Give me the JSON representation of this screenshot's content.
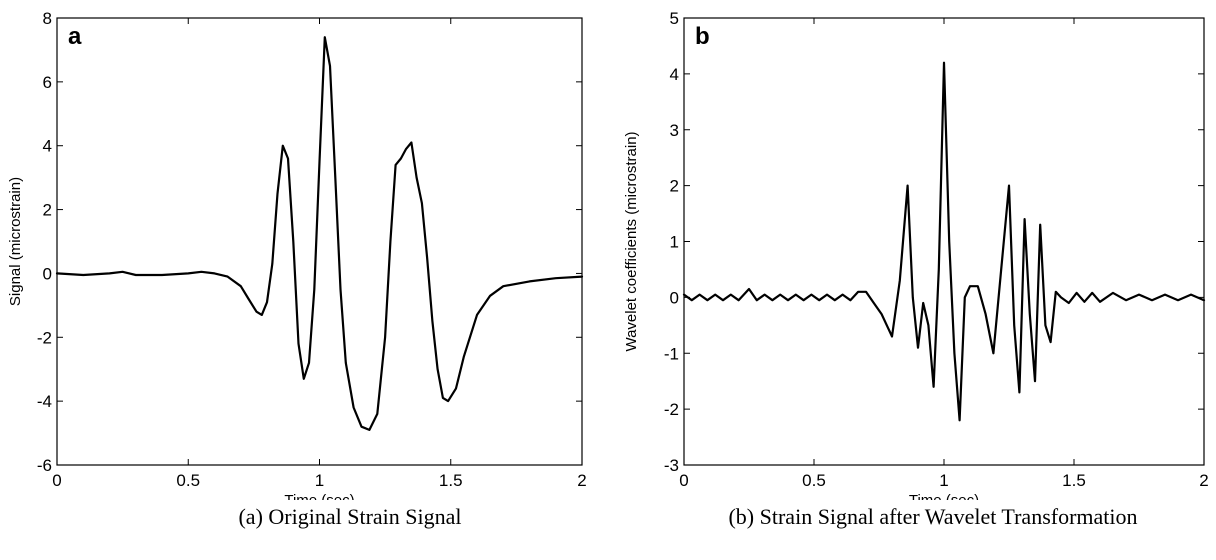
{
  "chart_data": [
    {
      "type": "line",
      "panel_label": "a",
      "xlabel": "Time (sec)",
      "ylabel": "Signal (microstrain)",
      "xlim": [
        0,
        2
      ],
      "ylim": [
        -6,
        8
      ],
      "xticks": [
        0,
        0.5,
        1,
        1.5,
        2
      ],
      "yticks": [
        -6,
        -4,
        -2,
        0,
        2,
        4,
        6,
        8
      ],
      "xtick_labels": [
        "0",
        "0.5",
        "1",
        "1.5",
        "2"
      ],
      "ytick_labels": [
        "-6",
        "-4",
        "-2",
        "0",
        "2",
        "4",
        "6",
        "8"
      ],
      "grid": false,
      "series": [
        {
          "line_color": "#000000",
          "x": [
            0,
            0.1,
            0.2,
            0.25,
            0.3,
            0.4,
            0.5,
            0.55,
            0.6,
            0.65,
            0.7,
            0.73,
            0.76,
            0.78,
            0.8,
            0.82,
            0.84,
            0.86,
            0.88,
            0.9,
            0.92,
            0.94,
            0.96,
            0.98,
            1.0,
            1.02,
            1.04,
            1.06,
            1.08,
            1.1,
            1.13,
            1.16,
            1.19,
            1.22,
            1.25,
            1.27,
            1.29,
            1.31,
            1.33,
            1.35,
            1.37,
            1.39,
            1.41,
            1.43,
            1.45,
            1.47,
            1.49,
            1.52,
            1.55,
            1.6,
            1.65,
            1.7,
            1.8,
            1.9,
            2.0
          ],
          "y": [
            0,
            -0.05,
            0,
            0.05,
            -0.05,
            -0.05,
            0,
            0.05,
            0,
            -0.1,
            -0.4,
            -0.8,
            -1.2,
            -1.3,
            -0.9,
            0.3,
            2.5,
            4.0,
            3.6,
            1.0,
            -2.2,
            -3.3,
            -2.8,
            -0.5,
            3.5,
            7.4,
            6.5,
            3.0,
            -0.5,
            -2.8,
            -4.2,
            -4.8,
            -4.9,
            -4.4,
            -2.0,
            1.0,
            3.4,
            3.6,
            3.9,
            4.1,
            3.0,
            2.2,
            0.5,
            -1.5,
            -3.0,
            -3.9,
            -4.0,
            -3.6,
            -2.6,
            -1.3,
            -0.7,
            -0.4,
            -0.25,
            -0.15,
            -0.1
          ]
        }
      ]
    },
    {
      "type": "line",
      "panel_label": "b",
      "xlabel": "Time (sec)",
      "ylabel": "Wavelet coefficients (microstrain)",
      "xlim": [
        0,
        2
      ],
      "ylim": [
        -3,
        5
      ],
      "xticks": [
        0,
        0.5,
        1,
        1.5,
        2
      ],
      "yticks": [
        -3,
        -2,
        -1,
        0,
        1,
        2,
        3,
        4,
        5
      ],
      "xtick_labels": [
        "0",
        "0.5",
        "1",
        "1.5",
        "2"
      ],
      "ytick_labels": [
        "-3",
        "-2",
        "-1",
        "0",
        "1",
        "2",
        "3",
        "4",
        "5"
      ],
      "grid": false,
      "series": [
        {
          "line_color": "#000000",
          "x": [
            0,
            0.03,
            0.06,
            0.09,
            0.12,
            0.15,
            0.18,
            0.21,
            0.25,
            0.28,
            0.31,
            0.34,
            0.37,
            0.4,
            0.43,
            0.46,
            0.49,
            0.52,
            0.55,
            0.58,
            0.61,
            0.64,
            0.67,
            0.7,
            0.73,
            0.76,
            0.8,
            0.83,
            0.86,
            0.88,
            0.9,
            0.92,
            0.94,
            0.96,
            0.98,
            1.0,
            1.02,
            1.04,
            1.06,
            1.08,
            1.1,
            1.13,
            1.16,
            1.19,
            1.22,
            1.25,
            1.27,
            1.29,
            1.31,
            1.33,
            1.35,
            1.37,
            1.39,
            1.41,
            1.43,
            1.45,
            1.48,
            1.51,
            1.54,
            1.57,
            1.6,
            1.65,
            1.7,
            1.75,
            1.8,
            1.85,
            1.9,
            1.95,
            2.0
          ],
          "y": [
            0.05,
            -0.05,
            0.05,
            -0.05,
            0.05,
            -0.05,
            0.05,
            -0.05,
            0.15,
            -0.05,
            0.05,
            -0.05,
            0.05,
            -0.05,
            0.05,
            -0.05,
            0.05,
            -0.05,
            0.05,
            -0.05,
            0.05,
            -0.05,
            0.1,
            0.1,
            -0.1,
            -0.3,
            -0.7,
            0.3,
            2.0,
            0.0,
            -0.9,
            -0.1,
            -0.5,
            -1.6,
            0.5,
            4.2,
            1.0,
            -1.0,
            -2.2,
            0.0,
            0.2,
            0.2,
            -0.3,
            -1.0,
            0.5,
            2.0,
            -0.5,
            -1.7,
            1.4,
            -0.3,
            -1.5,
            1.3,
            -0.5,
            -0.8,
            0.1,
            0.0,
            -0.1,
            0.08,
            -0.08,
            0.08,
            -0.08,
            0.08,
            -0.05,
            0.05,
            -0.05,
            0.05,
            -0.05,
            0.05,
            -0.05
          ]
        }
      ]
    }
  ],
  "captions": {
    "a": "(a) Original Strain Signal",
    "b": "(b) Strain Signal after Wavelet Transformation"
  }
}
